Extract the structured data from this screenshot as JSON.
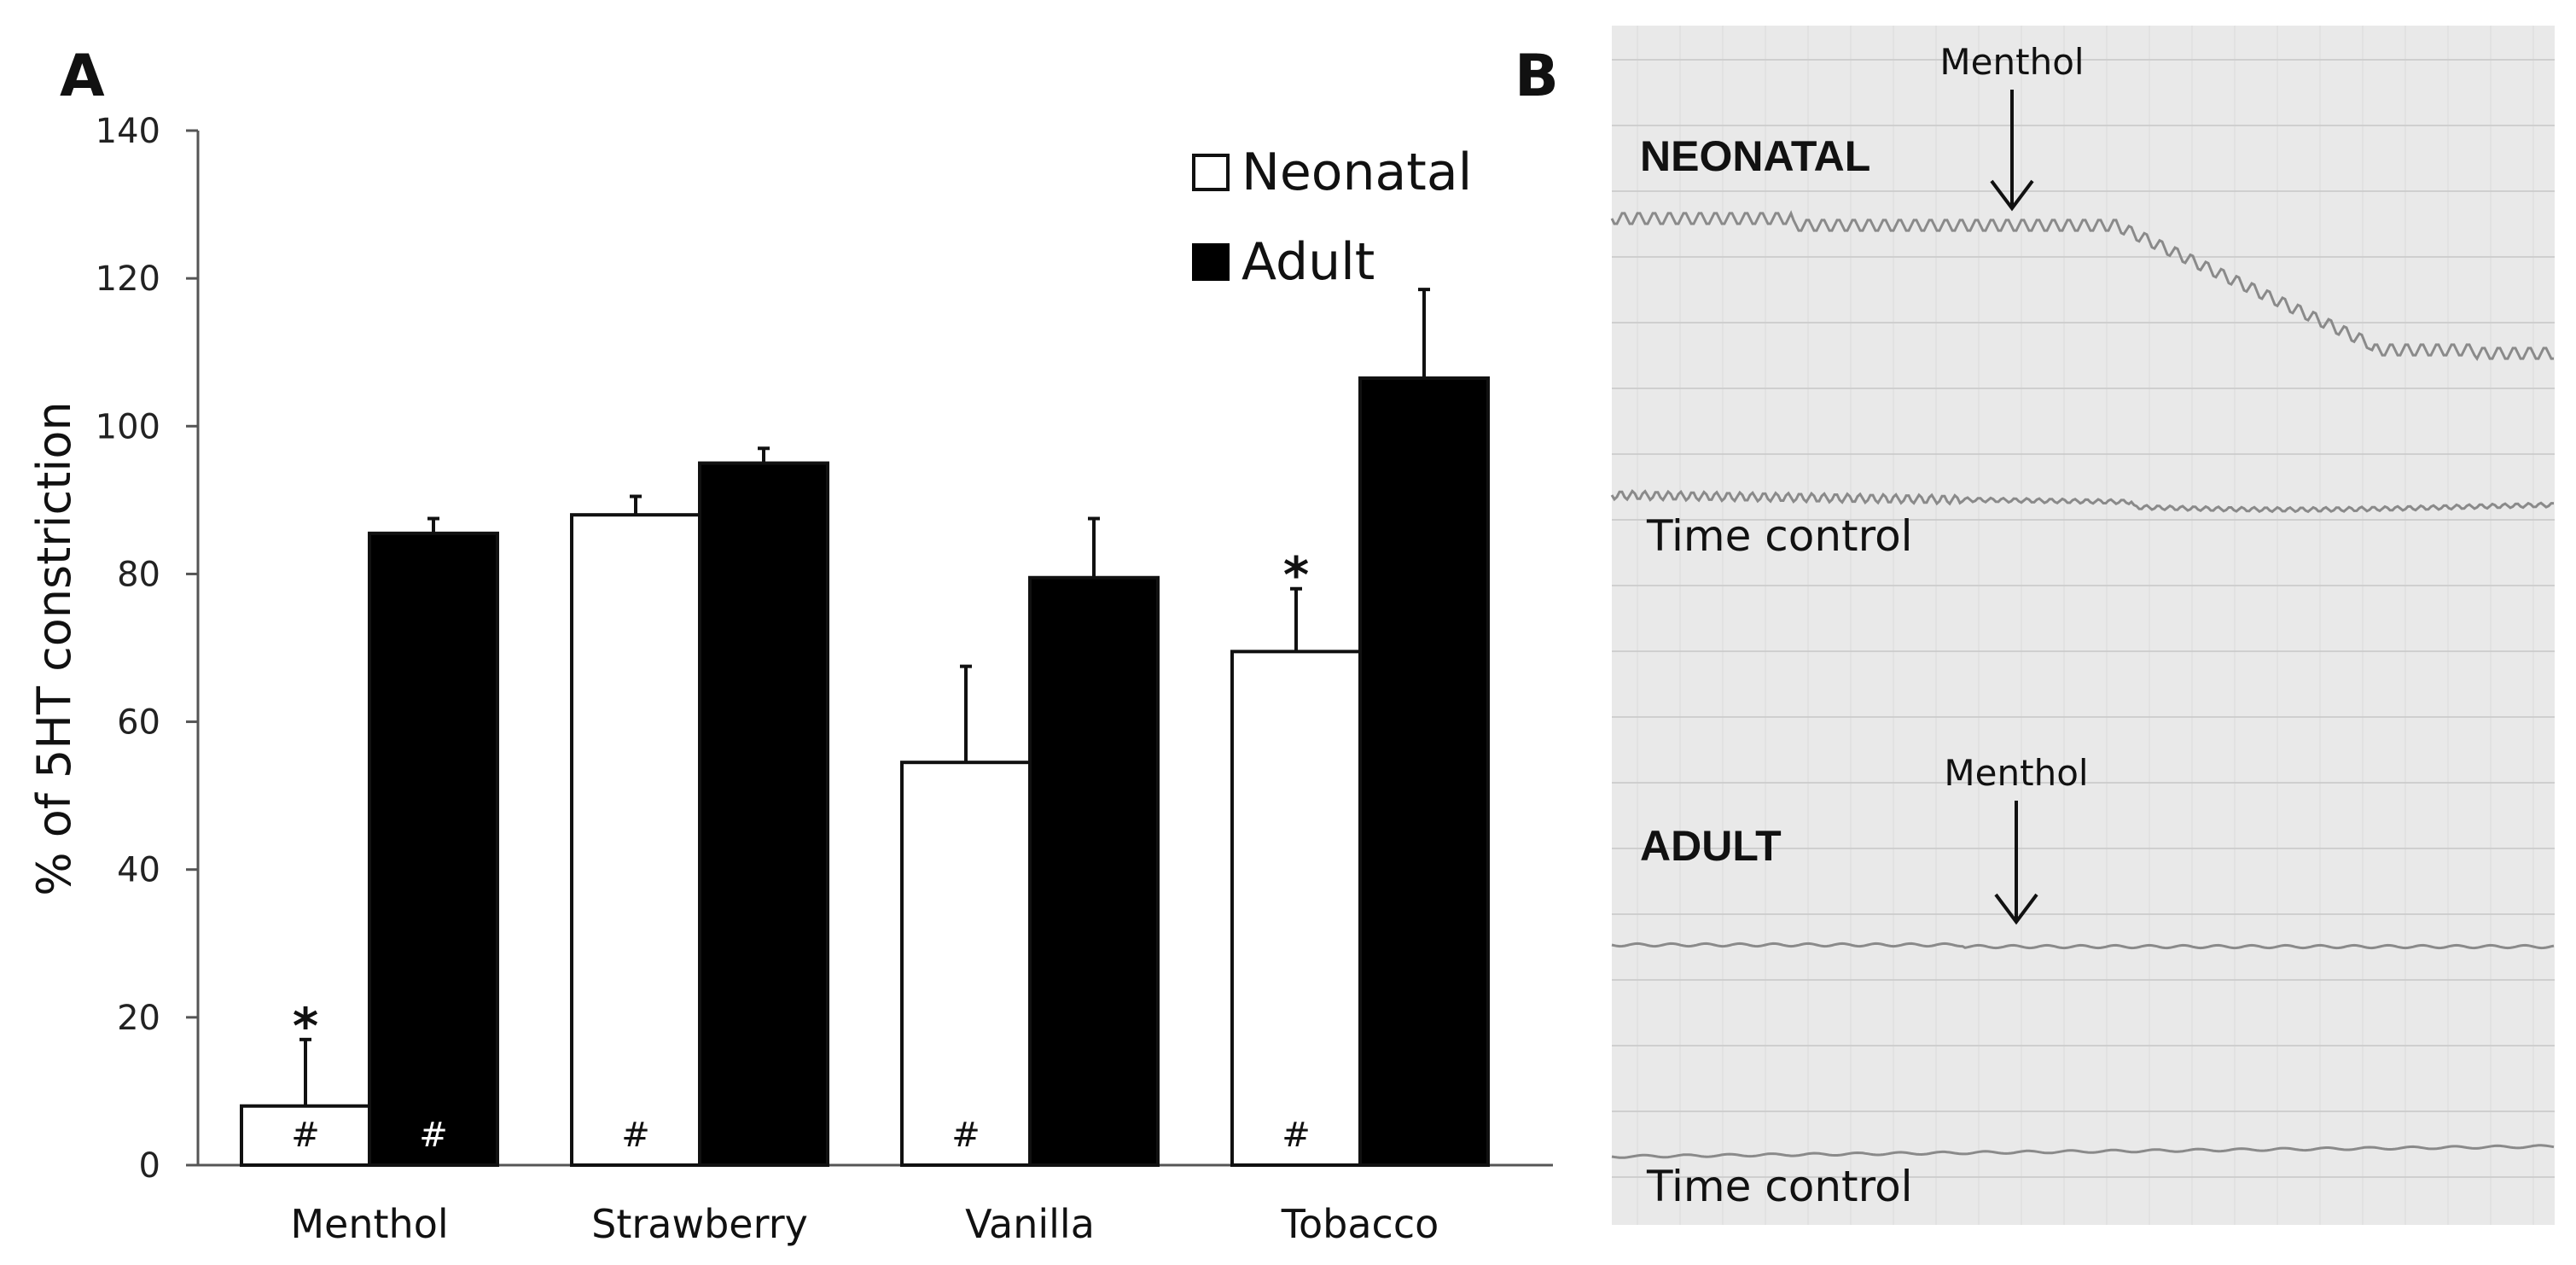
{
  "panels": {
    "a_letter": "A",
    "b_letter": "B"
  },
  "chart_data": {
    "type": "bar",
    "title": "",
    "ylabel": "% of 5HT constriction",
    "xlabel": "",
    "ylim": [
      0,
      140
    ],
    "yticks": [
      0,
      20,
      40,
      60,
      80,
      100,
      120,
      140
    ],
    "categories": [
      "Menthol",
      "Strawberry",
      "Vanilla",
      "Tobacco"
    ],
    "series": [
      {
        "name": "Neonatal",
        "color": "#ffffff",
        "values": [
          8,
          88,
          54.5,
          69.5
        ],
        "errors": [
          9,
          2.5,
          13,
          8.5
        ],
        "markers": [
          "#",
          "#",
          "#",
          "#"
        ],
        "marker_color": "#111111"
      },
      {
        "name": "Adult",
        "color": "#000000",
        "values": [
          85.5,
          95,
          79.5,
          106.5
        ],
        "errors": [
          2,
          2,
          8,
          12
        ],
        "markers": [
          "#",
          "",
          "",
          ""
        ],
        "marker_color": "#ffffff"
      }
    ],
    "significance": [
      "*",
      "",
      "",
      "*"
    ],
    "legend": [
      "Neonatal",
      "Adult"
    ],
    "legend_position": "top-right"
  },
  "traces": {
    "neonatal_title": "NEONATAL",
    "adult_title": "ADULT",
    "neonatal_drug": "Menthol",
    "adult_drug": "Menthol",
    "control_label_1": "Time control",
    "control_label_2": "Time control",
    "paper_color": "#e9e9e9",
    "grid_color": "#c9c9c9",
    "trace_color": "#8a8a8a"
  }
}
